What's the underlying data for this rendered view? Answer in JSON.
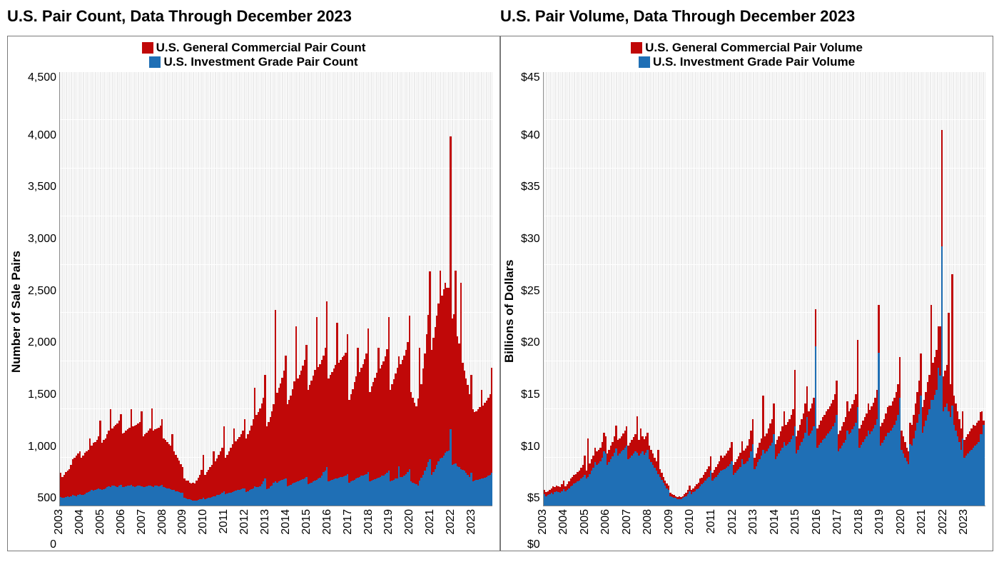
{
  "colors": {
    "red": "#c00808",
    "blue": "#1f6fb5",
    "plot_bg": "#ececec",
    "grid": "#ffffff",
    "border": "#7a7a7a"
  },
  "years": [
    "2003",
    "2004",
    "2005",
    "2006",
    "2007",
    "2008",
    "2009",
    "2010",
    "2011",
    "2012",
    "2013",
    "2014",
    "2015",
    "2016",
    "2017",
    "2018",
    "2019",
    "2020",
    "2021",
    "2022",
    "2023"
  ],
  "charts": [
    {
      "id": "count",
      "title": "U.S. Pair Count, Data Through December 2023",
      "ylabel": "Number of Sale Pairs",
      "ylim": [
        0,
        4500
      ],
      "yticks": [
        0,
        500,
        1000,
        1500,
        2000,
        2500,
        3000,
        3500,
        4000,
        4500
      ],
      "ytick_format": "comma",
      "legend": [
        {
          "color_key": "red",
          "label": "U.S. General Commercial Pair Count"
        },
        {
          "color_key": "blue",
          "label": "U.S. Investment Grade Pair Count"
        }
      ],
      "series_blue": [
        90,
        80,
        85,
        90,
        95,
        90,
        100,
        110,
        105,
        100,
        110,
        120,
        110,
        115,
        120,
        130,
        140,
        150,
        160,
        155,
        160,
        170,
        175,
        170,
        160,
        170,
        180,
        190,
        200,
        195,
        205,
        210,
        200,
        195,
        205,
        215,
        190,
        195,
        200,
        205,
        210,
        215,
        200,
        195,
        200,
        205,
        210,
        200,
        190,
        195,
        200,
        205,
        210,
        200,
        195,
        205,
        210,
        200,
        205,
        215,
        190,
        185,
        180,
        175,
        170,
        165,
        160,
        150,
        145,
        140,
        135,
        130,
        80,
        75,
        70,
        65,
        60,
        55,
        50,
        55,
        60,
        65,
        70,
        80,
        70,
        75,
        80,
        85,
        90,
        95,
        100,
        110,
        115,
        120,
        130,
        150,
        120,
        125,
        130,
        135,
        140,
        150,
        155,
        160,
        165,
        170,
        175,
        180,
        140,
        150,
        160,
        170,
        180,
        200,
        190,
        195,
        200,
        220,
        250,
        280,
        170,
        180,
        200,
        210,
        240,
        250,
        240,
        255,
        260,
        270,
        275,
        280,
        200,
        210,
        215,
        230,
        240,
        245,
        250,
        260,
        270,
        275,
        280,
        300,
        220,
        230,
        240,
        250,
        260,
        270,
        280,
        290,
        310,
        350,
        360,
        400,
        250,
        260,
        270,
        275,
        280,
        285,
        290,
        295,
        300,
        305,
        310,
        330,
        240,
        250,
        260,
        270,
        280,
        290,
        300,
        310,
        315,
        320,
        330,
        350,
        250,
        260,
        270,
        275,
        280,
        290,
        300,
        310,
        315,
        325,
        340,
        360,
        255,
        260,
        270,
        280,
        285,
        410,
        295,
        300,
        310,
        330,
        350,
        380,
        250,
        240,
        230,
        220,
        210,
        260,
        290,
        320,
        360,
        400,
        450,
        480,
        320,
        350,
        380,
        420,
        460,
        490,
        500,
        520,
        550,
        560,
        570,
        790,
        420,
        430,
        440,
        410,
        400,
        380,
        370,
        360,
        340,
        320,
        300,
        340,
        250,
        260,
        265,
        270,
        275,
        280,
        285,
        290,
        300,
        310,
        320,
        340
      ],
      "series_red": [
        340,
        300,
        320,
        350,
        360,
        380,
        420,
        480,
        500,
        520,
        540,
        560,
        500,
        520,
        550,
        560,
        580,
        700,
        620,
        650,
        660,
        680,
        720,
        880,
        650,
        680,
        700,
        740,
        780,
        1000,
        800,
        820,
        840,
        850,
        880,
        950,
        750,
        760,
        780,
        790,
        810,
        1000,
        820,
        830,
        840,
        850,
        870,
        980,
        720,
        740,
        760,
        780,
        800,
        1010,
        780,
        790,
        800,
        810,
        830,
        900,
        700,
        680,
        660,
        640,
        620,
        740,
        560,
        530,
        500,
        470,
        430,
        400,
        280,
        260,
        260,
        240,
        230,
        240,
        230,
        260,
        290,
        320,
        370,
        530,
        320,
        350,
        370,
        400,
        420,
        560,
        460,
        490,
        530,
        560,
        600,
        820,
        500,
        530,
        560,
        600,
        640,
        800,
        670,
        690,
        710,
        740,
        780,
        900,
        700,
        740,
        780,
        830,
        900,
        1220,
        940,
        970,
        1010,
        1060,
        1120,
        1360,
        820,
        870,
        920,
        980,
        1050,
        2030,
        1170,
        1220,
        1270,
        1330,
        1400,
        1560,
        1050,
        1100,
        1140,
        1210,
        1290,
        1860,
        1320,
        1360,
        1400,
        1450,
        1510,
        1670,
        1200,
        1250,
        1300,
        1350,
        1410,
        1960,
        1440,
        1470,
        1510,
        1560,
        1640,
        2120,
        1320,
        1360,
        1390,
        1420,
        1460,
        1900,
        1480,
        1510,
        1540,
        1560,
        1590,
        1780,
        1100,
        1160,
        1210,
        1280,
        1340,
        1640,
        1390,
        1430,
        1470,
        1520,
        1580,
        1840,
        1180,
        1240,
        1280,
        1330,
        1380,
        1640,
        1420,
        1460,
        1500,
        1550,
        1620,
        1960,
        1200,
        1260,
        1310,
        1370,
        1430,
        1550,
        1470,
        1510,
        1560,
        1620,
        1700,
        1970,
        1180,
        1120,
        1070,
        1030,
        1110,
        1640,
        1260,
        1420,
        1580,
        1780,
        1980,
        2430,
        1620,
        1740,
        1850,
        1970,
        2100,
        2440,
        2180,
        2250,
        2310,
        2260,
        2260,
        3830,
        1940,
        1990,
        2440,
        1760,
        1680,
        2310,
        1480,
        1400,
        1320,
        1250,
        1160,
        1360,
        1000,
        970,
        980,
        1000,
        1020,
        1200,
        1040,
        1070,
        1090,
        1120,
        1160,
        1430
      ]
    },
    {
      "id": "volume",
      "title": "U.S. Pair Volume, Data Through December 2023",
      "ylabel": "Billions of Dollars",
      "ylim": [
        0,
        45
      ],
      "yticks": [
        0,
        5,
        10,
        15,
        20,
        25,
        30,
        35,
        40,
        45
      ],
      "ytick_format": "dollar",
      "legend": [
        {
          "color_key": "red",
          "label": "U.S. General Commercial Pair Volume"
        },
        {
          "color_key": "blue",
          "label": "U.S. Investment Grade Pair Volume"
        }
      ],
      "series_blue": [
        1.2,
        1.0,
        1.1,
        1.2,
        1.3,
        1.2,
        1.4,
        1.5,
        1.4,
        1.3,
        1.5,
        1.7,
        1.5,
        1.6,
        1.8,
        2.0,
        2.1,
        2.3,
        2.4,
        2.5,
        2.6,
        2.8,
        3.0,
        3.2,
        2.8,
        3.0,
        3.3,
        3.6,
        3.9,
        4.5,
        4.2,
        4.4,
        4.6,
        5.0,
        5.6,
        5.4,
        4.2,
        4.5,
        4.8,
        5.1,
        5.5,
        5.9,
        5.2,
        5.4,
        5.6,
        5.8,
        6.0,
        6.2,
        4.8,
        5.0,
        5.2,
        5.4,
        5.6,
        5.5,
        5.2,
        5.4,
        5.6,
        5.3,
        5.5,
        5.8,
        4.8,
        4.5,
        4.2,
        3.9,
        3.6,
        3.3,
        3.0,
        2.7,
        2.4,
        2.1,
        1.8,
        1.6,
        1.0,
        0.9,
        0.8,
        0.8,
        0.7,
        0.7,
        0.7,
        0.8,
        0.9,
        1.0,
        1.2,
        1.5,
        1.2,
        1.4,
        1.5,
        1.7,
        1.8,
        2.0,
        2.2,
        2.4,
        2.6,
        2.8,
        3.0,
        3.6,
        2.6,
        2.8,
        3.0,
        3.2,
        3.4,
        3.6,
        3.7,
        3.8,
        3.9,
        4.1,
        4.3,
        4.6,
        3.2,
        3.4,
        3.6,
        3.8,
        4.0,
        4.8,
        4.3,
        4.4,
        4.6,
        5.0,
        5.6,
        6.4,
        3.8,
        4.1,
        4.5,
        4.8,
        5.2,
        5.8,
        5.4,
        5.6,
        5.9,
        6.2,
        6.5,
        7.4,
        4.8,
        5.1,
        5.4,
        5.7,
        6.0,
        6.6,
        6.2,
        6.4,
        6.6,
        6.9,
        7.3,
        8.2,
        5.4,
        5.8,
        6.2,
        6.6,
        7.0,
        7.6,
        9.2,
        7.3,
        7.5,
        7.8,
        8.2,
        16.5,
        6.0,
        6.3,
        6.5,
        6.8,
        7.0,
        7.3,
        7.5,
        7.7,
        7.9,
        8.2,
        8.6,
        9.4,
        5.6,
        5.9,
        6.2,
        6.5,
        6.8,
        7.8,
        7.4,
        7.6,
        7.9,
        8.2,
        8.6,
        10.2,
        6.0,
        6.3,
        6.6,
        6.9,
        7.2,
        7.8,
        7.4,
        7.7,
        8.0,
        8.4,
        9.0,
        15.9,
        6.2,
        6.5,
        6.8,
        7.2,
        7.6,
        7.6,
        7.8,
        8.1,
        8.4,
        8.8,
        9.4,
        11.2,
        5.8,
        5.4,
        5.0,
        4.6,
        4.3,
        6.4,
        6.2,
        7.0,
        7.8,
        8.6,
        9.5,
        11.4,
        7.6,
        8.2,
        8.8,
        9.4,
        10.0,
        11.0,
        11.0,
        11.5,
        12.0,
        14.3,
        13.5,
        26.9,
        9.8,
        10.2,
        10.6,
        9.8,
        9.2,
        10.4,
        8.4,
        7.8,
        7.2,
        6.6,
        5.8,
        7.0,
        5.0,
        5.2,
        5.4,
        5.6,
        5.8,
        6.0,
        6.2,
        6.4,
        6.6,
        7.4,
        7.4,
        8.4
      ],
      "series_red": [
        1.6,
        1.4,
        1.5,
        1.6,
        1.8,
        2.0,
        1.9,
        2.1,
        2.0,
        1.9,
        2.2,
        2.6,
        2.0,
        2.2,
        2.5,
        2.8,
        3.0,
        3.2,
        3.3,
        3.5,
        3.6,
        3.9,
        4.2,
        5.2,
        3.6,
        7.0,
        4.4,
        4.8,
        5.2,
        6.0,
        5.6,
        5.8,
        6.0,
        6.6,
        7.6,
        7.2,
        5.4,
        5.8,
        6.2,
        6.6,
        7.2,
        8.3,
        6.8,
        7.0,
        7.2,
        7.5,
        7.8,
        8.2,
        6.2,
        6.5,
        6.8,
        7.1,
        7.4,
        9.3,
        6.8,
        8.0,
        7.2,
        6.9,
        7.2,
        7.6,
        6.2,
        5.8,
        5.4,
        5.0,
        4.6,
        5.8,
        3.8,
        3.4,
        3.0,
        2.6,
        2.3,
        2.1,
        1.3,
        1.2,
        1.1,
        1.0,
        0.9,
        1.0,
        0.9,
        1.0,
        1.2,
        1.3,
        1.6,
        2.1,
        1.6,
        1.8,
        2.0,
        2.2,
        2.4,
        2.8,
        2.9,
        3.2,
        3.5,
        3.8,
        4.1,
        5.1,
        3.4,
        3.7,
        4.0,
        4.3,
        4.6,
        5.2,
        5.0,
        5.2,
        5.4,
        5.7,
        6.0,
        6.6,
        4.2,
        4.5,
        4.8,
        5.1,
        5.5,
        6.7,
        5.7,
        5.9,
        6.2,
        6.9,
        7.8,
        9.0,
        5.0,
        5.4,
        6.0,
        6.5,
        7.0,
        11.4,
        7.2,
        7.5,
        8.0,
        8.5,
        9.0,
        10.6,
        6.4,
        6.8,
        7.2,
        7.7,
        8.2,
        9.8,
        8.4,
        8.7,
        9.0,
        9.4,
        10.0,
        14.1,
        7.2,
        7.8,
        8.4,
        9.0,
        9.6,
        10.6,
        12.4,
        9.8,
        10.1,
        10.6,
        11.2,
        20.4,
        8.0,
        8.4,
        8.8,
        9.2,
        9.4,
        9.8,
        10.0,
        10.3,
        10.6,
        11.0,
        11.6,
        13.0,
        7.4,
        7.8,
        8.2,
        8.7,
        9.2,
        10.8,
        9.8,
        10.1,
        10.5,
        11.0,
        11.6,
        17.2,
        8.0,
        8.4,
        8.8,
        9.2,
        9.6,
        10.6,
        9.9,
        10.3,
        10.7,
        11.2,
        12.0,
        20.8,
        8.2,
        8.6,
        9.0,
        9.6,
        10.2,
        10.4,
        10.4,
        10.8,
        11.2,
        11.8,
        12.6,
        15.4,
        7.8,
        7.2,
        6.6,
        6.0,
        5.6,
        8.6,
        8.4,
        9.4,
        10.6,
        11.8,
        13.0,
        15.8,
        10.2,
        11.0,
        11.8,
        12.8,
        13.6,
        20.8,
        14.8,
        15.4,
        16.2,
        18.6,
        18.6,
        39.0,
        13.4,
        14.0,
        14.6,
        20.0,
        12.6,
        24.0,
        11.4,
        10.6,
        9.8,
        9.0,
        8.0,
        9.8,
        6.8,
        7.1,
        7.4,
        7.7,
        8.0,
        8.4,
        8.3,
        8.6,
        8.8,
        9.7,
        9.8,
        8.8
      ]
    }
  ]
}
